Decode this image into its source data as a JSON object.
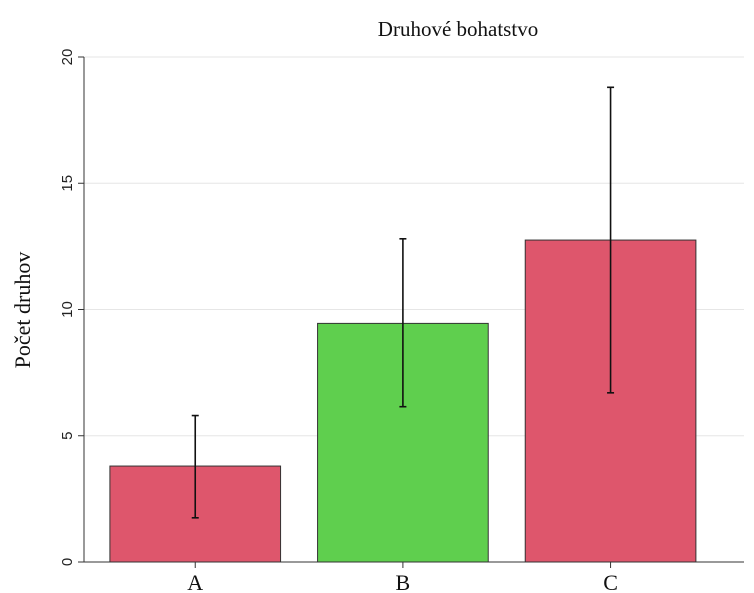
{
  "chart_data": {
    "type": "bar",
    "title": "Druhové bohatstvo",
    "xlabel": "",
    "ylabel": "Počet druhov",
    "categories": [
      "A",
      "B",
      "C"
    ],
    "values": [
      3.8,
      9.45,
      12.75
    ],
    "error_low": [
      1.75,
      6.15,
      6.7
    ],
    "error_high": [
      5.8,
      12.8,
      18.8
    ],
    "colors": [
      "#de566c",
      "#5fcf4e",
      "#de566c"
    ],
    "ylim": [
      0,
      20
    ],
    "yticks": [
      "0",
      "5",
      "10",
      "15",
      "20"
    ],
    "grid": true
  }
}
